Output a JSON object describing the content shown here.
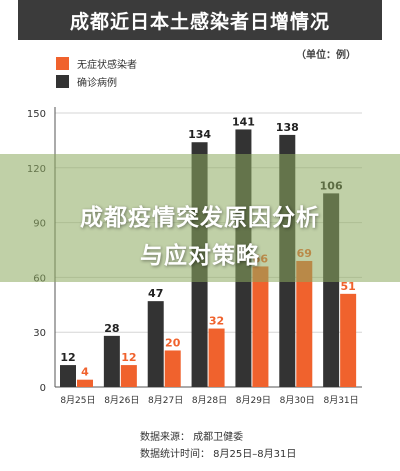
{
  "header": {
    "title": "成都近日本土感染者日增情况",
    "unit": "（单位：例）"
  },
  "legend": [
    {
      "label": "无症状感染者",
      "color": "#f0622d"
    },
    {
      "label": "确诊病例",
      "color": "#333333"
    }
  ],
  "overlay": {
    "line1": "成都疫情突发原因分析",
    "line2": "与应对策略"
  },
  "footer": {
    "source": "数据来源：   成都卫健委",
    "period": "数据统计时间：   8月25日–8月31日"
  },
  "chart_data": {
    "type": "bar",
    "categories": [
      "8月25日",
      "8月26日",
      "8月27日",
      "8月28日",
      "8月29日",
      "8月30日",
      "8月31日"
    ],
    "series": [
      {
        "name": "确诊病例",
        "color": "#333333",
        "values": [
          12,
          28,
          47,
          134,
          141,
          138,
          106
        ]
      },
      {
        "name": "无症状感染者",
        "color": "#f0622d",
        "values": [
          4,
          12,
          20,
          32,
          66,
          69,
          51
        ]
      }
    ],
    "yticks": [
      0,
      30,
      60,
      90,
      120,
      150
    ],
    "ylim": [
      0,
      150
    ],
    "grid": true,
    "legend_position": "top-left"
  }
}
